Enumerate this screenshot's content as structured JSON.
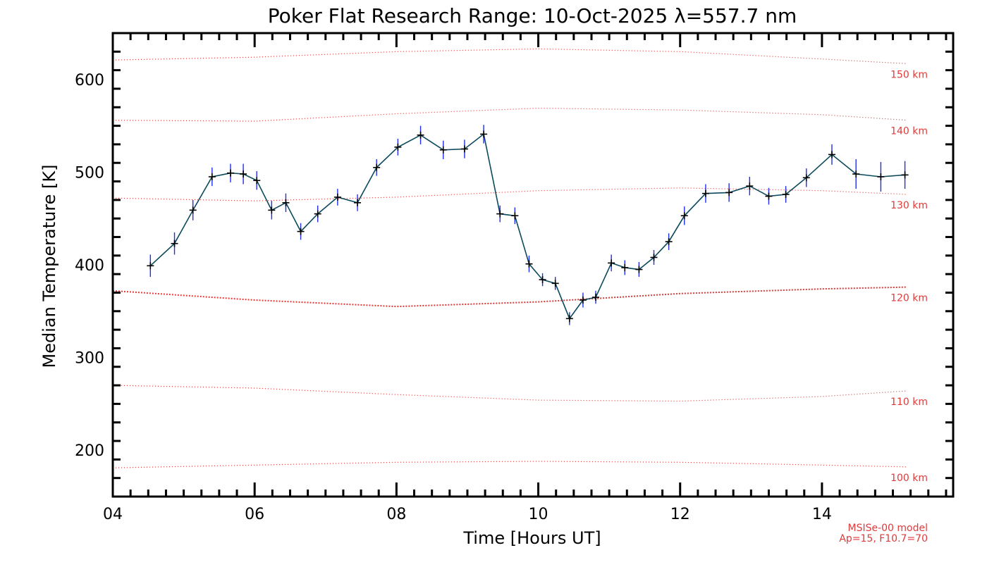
{
  "chart_data": {
    "type": "line",
    "title": "Poker Flat Research Range: 10-Oct-2025 λ=557.7 nm",
    "xlabel": "Time [Hours UT]",
    "ylabel": "Median Temperature [K]",
    "xlim": [
      4.0,
      15.85
    ],
    "ylim": [
      150,
      650
    ],
    "xticks": [
      4,
      6,
      8,
      10,
      12,
      14
    ],
    "xtick_labels": [
      "04",
      "06",
      "08",
      "10",
      "12",
      "14"
    ],
    "yticks": [
      200,
      300,
      400,
      500,
      600
    ],
    "ytick_labels": [
      "200",
      "300",
      "400",
      "500",
      "600"
    ],
    "colors": {
      "series_line": "#0b4a5c",
      "marker": "#000000",
      "error_bar": "#1f2ee8",
      "model_line": "#e03a3a",
      "axis": "#000000"
    },
    "series": [
      {
        "name": "Median Temperature",
        "x": [
          4.53,
          4.87,
          5.13,
          5.4,
          5.66,
          5.84,
          6.03,
          6.24,
          6.44,
          6.65,
          6.89,
          7.17,
          7.45,
          7.72,
          8.02,
          8.34,
          8.66,
          8.96,
          9.23,
          9.46,
          9.67,
          9.87,
          10.06,
          10.24,
          10.44,
          10.63,
          10.81,
          11.03,
          11.22,
          11.42,
          11.63,
          11.84,
          12.06,
          12.36,
          12.69,
          12.98,
          13.25,
          13.49,
          13.78,
          14.14,
          14.48,
          14.83,
          15.17
        ],
        "y": [
          399,
          423,
          459,
          495,
          499,
          498,
          491,
          459,
          467,
          436,
          455,
          473,
          467,
          505,
          527,
          540,
          524,
          525,
          541,
          455,
          453,
          401,
          384,
          380,
          342,
          362,
          365,
          402,
          397,
          395,
          408,
          425,
          453,
          477,
          478,
          485,
          474,
          476,
          494,
          519,
          498,
          495,
          497
        ],
        "err": [
          12,
          12,
          11,
          10,
          10,
          11,
          10,
          10,
          10,
          9,
          9,
          9,
          9,
          9,
          9,
          10,
          10,
          10,
          10,
          9,
          9,
          9,
          7,
          7,
          7,
          8,
          7,
          9,
          8,
          8,
          8,
          9,
          10,
          10,
          10,
          10,
          9,
          9,
          10,
          11,
          16,
          16,
          15
        ]
      }
    ],
    "model_lines": [
      {
        "label": "150 km",
        "x": [
          4.0,
          6.0,
          8.0,
          10.0,
          12.0,
          14.0,
          15.2
        ],
        "y": [
          621,
          624,
          630,
          633,
          630,
          622,
          617
        ],
        "style": "sparse"
      },
      {
        "label": "140 km",
        "x": [
          4.0,
          6.0,
          8.0,
          10.0,
          12.0,
          14.0,
          15.2
        ],
        "y": [
          556,
          555,
          563,
          569,
          567,
          562,
          556
        ],
        "style": "sparse"
      },
      {
        "label": "130 km",
        "x": [
          4.0,
          6.0,
          8.0,
          10.0,
          12.0,
          14.0,
          15.2
        ],
        "y": [
          472,
          469,
          473,
          480,
          483,
          480,
          476
        ],
        "style": "sparse"
      },
      {
        "label": "120 km",
        "x": [
          4.0,
          6.0,
          8.0,
          10.0,
          12.0,
          14.0,
          15.2
        ],
        "y": [
          372,
          362,
          355,
          360,
          369,
          374,
          376
        ],
        "style": "dense"
      },
      {
        "label": "110 km",
        "x": [
          4.0,
          6.0,
          8.0,
          10.0,
          12.0,
          14.0,
          15.2
        ],
        "y": [
          270,
          267,
          260,
          254,
          253,
          258,
          264
        ],
        "style": "sparse"
      },
      {
        "label": "100 km",
        "x": [
          4.0,
          6.0,
          8.0,
          10.0,
          12.0,
          14.0,
          15.2
        ],
        "y": [
          181,
          184,
          187,
          188,
          187,
          184,
          182
        ],
        "style": "sparse"
      }
    ],
    "model_note": [
      "MSISe-00 model",
      "Ap=15, F10.7=70"
    ]
  }
}
